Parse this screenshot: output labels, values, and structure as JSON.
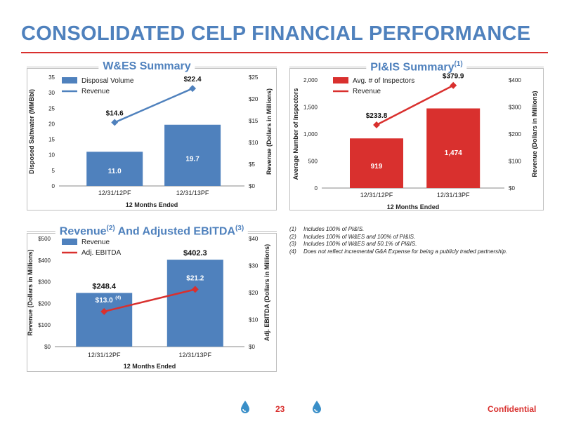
{
  "page": {
    "title": "CONSOLIDATED CELP FINANCIAL PERFORMANCE",
    "page_number": "23",
    "confidential": "Confidential",
    "accent_color": "#d9302e",
    "title_color": "#4f81bd"
  },
  "footnotes": [
    {
      "num": "(1)",
      "text": "Includes 100% of PI&IS."
    },
    {
      "num": "(2)",
      "text": "Includes 100% of W&ES and 100% of PI&IS."
    },
    {
      "num": "(3)",
      "text": "Includes 100% of W&ES and 50.1% of PI&IS."
    },
    {
      "num": "(4)",
      "text": "Does not reflect incremental G&A Expense for being a publicly traded partnership."
    }
  ],
  "chart_data": [
    {
      "id": "wes",
      "type": "bar",
      "title": "W&ES Summary",
      "title_sup": "",
      "categories": [
        "12/31/12PF",
        "12/31/13PF"
      ],
      "xlabel": "12 Months Ended",
      "bar_color": "#4f81bd",
      "line_color": "#4f81bd",
      "left_axis": {
        "label": "Disposed Saltwater (MMBbl)",
        "min": 0,
        "max": 35,
        "ticks": [
          "0",
          "5",
          "10",
          "15",
          "20",
          "25",
          "30",
          "35"
        ],
        "step": 5
      },
      "right_axis": {
        "label": "Revenue (Dollars in Millions)",
        "min": 0,
        "max": 25,
        "ticks": [
          "$0",
          "$5",
          "$10",
          "$15",
          "$20",
          "$25"
        ],
        "step": 5
      },
      "series": [
        {
          "name": "Disposal Volume",
          "kind": "bar",
          "axis": "left",
          "values": [
            11.0,
            19.7
          ],
          "labels": [
            "11.0",
            "19.7"
          ],
          "label_sup": [
            "",
            ""
          ]
        },
        {
          "name": "Revenue",
          "kind": "line",
          "axis": "right",
          "values": [
            14.6,
            22.4
          ],
          "labels": [
            "$14.6",
            "$22.4"
          ],
          "label_sup": [
            "",
            ""
          ]
        }
      ],
      "legend_position": "top-left"
    },
    {
      "id": "piis",
      "type": "bar",
      "title": "PI&IS Summary",
      "title_sup": "(1)",
      "categories": [
        "12/31/12PF",
        "12/31/13PF"
      ],
      "xlabel": "12 Months Ended",
      "bar_color": "#d9302e",
      "line_color": "#d9302e",
      "left_axis": {
        "label": "Average Number of Inspectors",
        "min": 0,
        "max": 2000,
        "ticks": [
          "0",
          "500",
          "1,000",
          "1,500",
          "2,000"
        ],
        "step": 500
      },
      "right_axis": {
        "label": "Revenue (Dollars in Millions)",
        "min": 0,
        "max": 400,
        "ticks": [
          "$0",
          "$100",
          "$200",
          "$300",
          "$400"
        ],
        "step": 100
      },
      "series": [
        {
          "name": "Avg. # of Inspectors",
          "kind": "bar",
          "axis": "left",
          "values": [
            919,
            1474
          ],
          "labels": [
            "919",
            "1,474"
          ],
          "label_sup": [
            "",
            ""
          ]
        },
        {
          "name": "Revenue",
          "kind": "line",
          "axis": "right",
          "values": [
            233.8,
            379.9
          ],
          "labels": [
            "$233.8",
            "$379.9"
          ],
          "label_sup": [
            "",
            ""
          ]
        }
      ],
      "legend_position": "top-left"
    },
    {
      "id": "ebitda",
      "type": "bar",
      "title": "Revenue",
      "title_sup": "(2)",
      "title_rest": " And Adjusted EBITDA",
      "title_sup2": "(3)",
      "categories": [
        "12/31/12PF",
        "12/31/13PF"
      ],
      "xlabel": "12 Months Ended",
      "bar_color": "#4f81bd",
      "line_color": "#d9302e",
      "left_axis": {
        "label": "Revenue (Dollars in Millions)",
        "min": 0,
        "max": 500,
        "ticks": [
          "$0",
          "$100",
          "$200",
          "$300",
          "$400",
          "$500"
        ],
        "step": 100
      },
      "right_axis": {
        "label": "Adj. EBITDA (Dollars in Millions)",
        "min": 0,
        "max": 40,
        "ticks": [
          "$0",
          "$10",
          "$20",
          "$30",
          "$40"
        ],
        "step": 10
      },
      "series": [
        {
          "name": "Revenue",
          "kind": "bar",
          "axis": "left",
          "values": [
            248.4,
            402.3
          ],
          "labels": [
            "$248.4",
            "$402.3"
          ],
          "label_sup": [
            "",
            ""
          ]
        },
        {
          "name": "Adj. EBITDA",
          "kind": "line",
          "axis": "right",
          "values": [
            13.0,
            21.2
          ],
          "labels": [
            "$13.0",
            "$21.2"
          ],
          "label_sup": [
            "(4)",
            ""
          ]
        }
      ],
      "legend_position": "top-left"
    }
  ]
}
